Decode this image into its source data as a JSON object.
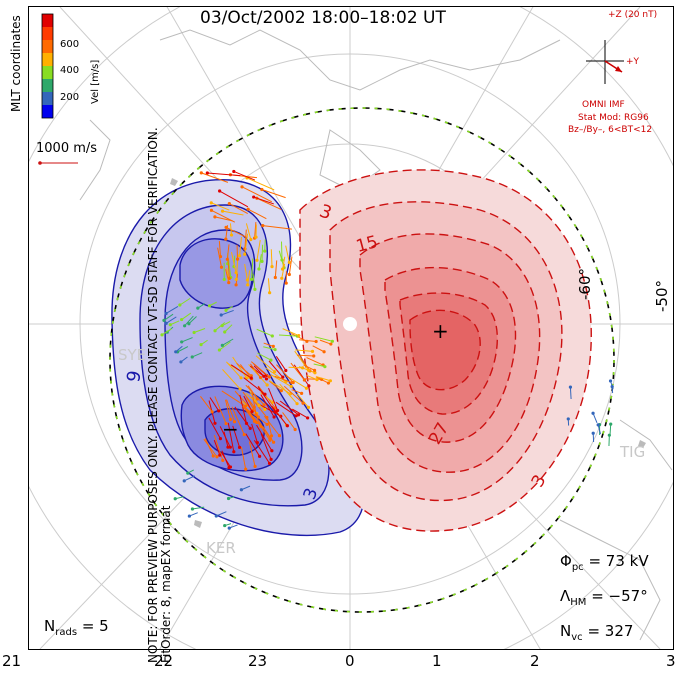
{
  "title": "03/Oct/2002 18:00–18:02 UT",
  "coords_label": "MLT coordinates",
  "colorbar": {
    "label": "Vel [m/s]",
    "ticks": [
      "600",
      "400",
      "200"
    ],
    "colors": [
      "#e00000",
      "#ff6a00",
      "#ffb000",
      "#88dd22",
      "#2ea86a",
      "#3366bb",
      "#0000ee"
    ]
  },
  "vector_scale": "1000 m/s",
  "note_line1": "NOTE: FOR PREVIEW PURPOSES ONLY. PLEASE CONTACT VT-SD STAFF FOR VERIFICATION.",
  "note_line2": "FitOrder: 8, mapEX format",
  "imf": {
    "z_label": "+Z (20 nT)",
    "y_label": "+Y",
    "source": "OMNI IMF",
    "model": "Stat Mod: RG96",
    "condition": "Bz–/By–, 6<BT<12"
  },
  "contours": {
    "neg_labels": [
      "9",
      "3"
    ],
    "pos_labels": [
      "3",
      "15",
      "27",
      "3"
    ]
  },
  "lat_labels": [
    "-60°",
    "-50°"
  ],
  "stations": [
    "SYE",
    "KER",
    "TIG"
  ],
  "stats": {
    "phi_pc_label": "Φ",
    "phi_pc_sub": "pc",
    "phi_pc_value": "= 73 kV",
    "lambda_label": "Λ",
    "lambda_sub": "HM",
    "lambda_value": "= −57°",
    "nvc_label": "N",
    "nvc_sub": "vc",
    "nvc_value": "= 327"
  },
  "nrads": {
    "label": "N",
    "sub": "rads",
    "value": "= 5"
  },
  "mlt_axis": [
    "21",
    "22",
    "23",
    "0",
    "1",
    "2",
    "3"
  ],
  "markers": {
    "min": "−",
    "max": "+"
  }
}
